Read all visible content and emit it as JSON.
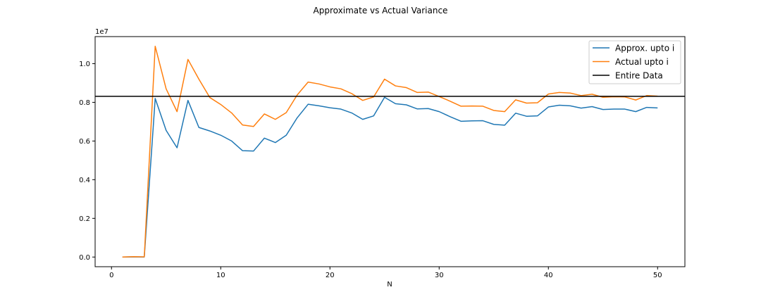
{
  "chart_data": {
    "type": "line",
    "title": "Approximate vs Actual Variance",
    "xlabel": "N",
    "ylabel": "",
    "y_offset_text": "1e7",
    "xlim": [
      -1.5,
      52.5
    ],
    "ylim": [
      -0.05,
      1.14
    ],
    "y_unit_multiplier": 10000000,
    "x_ticks": [
      0,
      10,
      20,
      30,
      40,
      50
    ],
    "y_ticks": [
      0.0,
      0.2,
      0.4,
      0.6,
      0.8,
      1.0
    ],
    "y_tick_labels": [
      "0.0",
      "0.2",
      "0.4",
      "0.6",
      "0.8",
      "1.0"
    ],
    "legend_position": "top-right",
    "x": [
      1,
      2,
      3,
      4,
      5,
      6,
      7,
      8,
      9,
      10,
      11,
      12,
      13,
      14,
      15,
      16,
      17,
      18,
      19,
      20,
      21,
      22,
      23,
      24,
      25,
      26,
      27,
      28,
      29,
      30,
      31,
      32,
      33,
      34,
      35,
      36,
      37,
      38,
      39,
      40,
      41,
      42,
      43,
      44,
      45,
      46,
      47,
      48,
      49,
      50
    ],
    "series": [
      {
        "name": "Approx. upto i",
        "color": "#1f77b4",
        "values": [
          0.0,
          0.001,
          0.0,
          0.82,
          0.655,
          0.565,
          0.81,
          0.67,
          0.652,
          0.63,
          0.6,
          0.55,
          0.548,
          0.615,
          0.592,
          0.63,
          0.72,
          0.79,
          0.782,
          0.772,
          0.765,
          0.745,
          0.712,
          0.73,
          0.826,
          0.793,
          0.787,
          0.766,
          0.768,
          0.752,
          0.726,
          0.702,
          0.704,
          0.705,
          0.686,
          0.682,
          0.744,
          0.728,
          0.73,
          0.776,
          0.785,
          0.782,
          0.77,
          0.778,
          0.763,
          0.765,
          0.765,
          0.752,
          0.774,
          0.771
        ]
      },
      {
        "name": "Actual upto i",
        "color": "#ff7f0e",
        "values": [
          0.0,
          0.002,
          0.001,
          1.09,
          0.87,
          0.752,
          1.022,
          0.92,
          0.825,
          0.789,
          0.745,
          0.683,
          0.675,
          0.74,
          0.712,
          0.747,
          0.838,
          0.905,
          0.895,
          0.88,
          0.87,
          0.845,
          0.81,
          0.828,
          0.92,
          0.885,
          0.876,
          0.851,
          0.853,
          0.83,
          0.806,
          0.78,
          0.781,
          0.78,
          0.758,
          0.752,
          0.813,
          0.796,
          0.798,
          0.843,
          0.851,
          0.848,
          0.835,
          0.842,
          0.826,
          0.829,
          0.828,
          0.812,
          0.835,
          0.832
        ]
      },
      {
        "name": "Entire Data",
        "color": "#000000",
        "type": "hline",
        "value": 0.831
      }
    ]
  }
}
